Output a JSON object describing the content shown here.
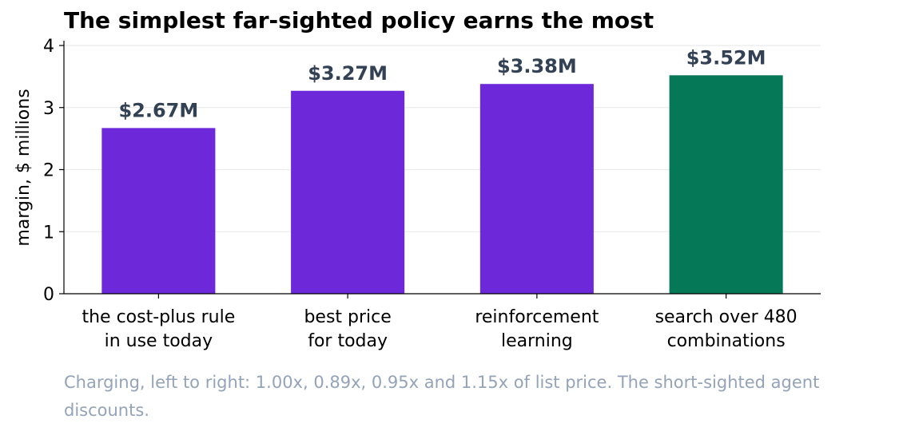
{
  "chart_data": {
    "type": "bar",
    "title": "The simplest far-sighted policy earns the most",
    "ylabel": "margin, $ millions",
    "xlabel": "",
    "ylim": [
      0,
      4
    ],
    "yticks": [
      "0",
      "1",
      "2",
      "3",
      "4"
    ],
    "grid": true,
    "categories": [
      [
        "the cost-plus rule",
        "in use today"
      ],
      [
        "best price",
        "for today"
      ],
      [
        "reinforcement",
        "learning"
      ],
      [
        "search over 480",
        "combinations"
      ]
    ],
    "values": [
      2.67,
      3.27,
      3.38,
      3.52
    ],
    "value_labels": [
      "$2.67M",
      "$3.27M",
      "$3.38M",
      "$3.52M"
    ],
    "colors": [
      "#6d28d9",
      "#6d28d9",
      "#6d28d9",
      "#047857"
    ],
    "note": "Charging, left to right: 1.00x, 0.89x, 0.95x and 1.15x of list price. The short-sighted agent discounts."
  }
}
